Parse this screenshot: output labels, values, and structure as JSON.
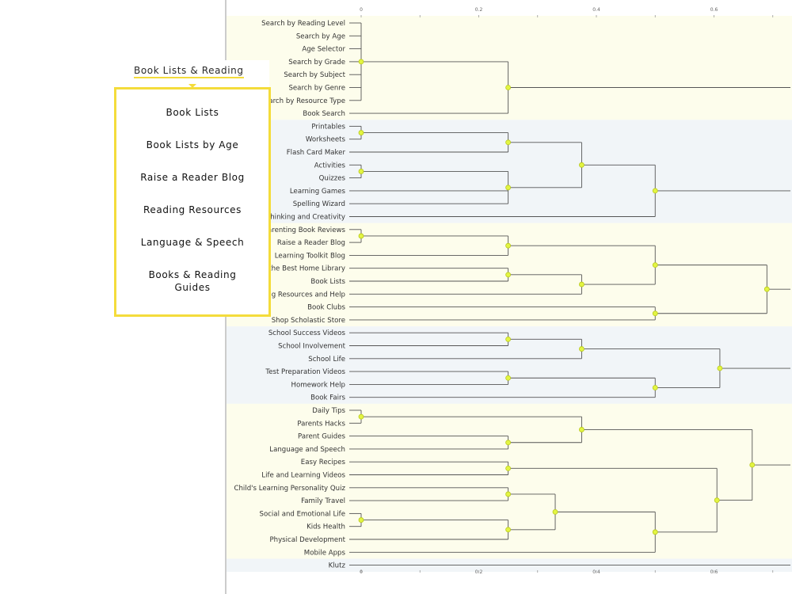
{
  "nav": {
    "tab_label": "Book Lists & Reading",
    "menu_items": [
      "Book Lists",
      "Book Lists by Age",
      "Raise a Reader Blog",
      "Reading Resources",
      "Language & Speech",
      "Books & Reading Guides"
    ]
  },
  "chart_data": {
    "type": "dendrogram",
    "orientation": "left-to-right",
    "x_ticks": [
      "0",
      "0.2",
      "0.4",
      "0.6"
    ],
    "x_tick_values": [
      0,
      0.2,
      0.4,
      0.6
    ],
    "x_range": [
      0,
      0.73
    ],
    "band_colors": [
      "#fdfdec",
      "#f1f5f8"
    ],
    "link_color": "#555555",
    "node_color": "#e3f542",
    "leaves": [
      "Search by Reading Level",
      "Search by Age",
      "Age Selector",
      "Search by Grade",
      "Search by Subject",
      "Search by Genre",
      "Search by Resource Type",
      "Book Search",
      "Printables",
      "Worksheets",
      "Flash Card Maker",
      "Activities",
      "Quizzes",
      "Learning Games",
      "Spelling Wizard",
      "Thinking and Creativity",
      "Parenting Book Reviews",
      "Raise a Reader Blog",
      "Learning Toolkit Blog",
      "Build the Best Home Library",
      "Book Lists",
      "Reading Resources and Help",
      "Book Clubs",
      "Shop Scholastic Store",
      "School Success Videos",
      "School Involvement",
      "School Life",
      "Test Preparation Videos",
      "Homework Help",
      "Book Fairs",
      "Daily Tips",
      "Parents Hacks",
      "Parent Guides",
      "Language and Speech",
      "Easy Recipes",
      "Life and Learning Videos",
      "Child's Learning Personality Quiz",
      "Family Travel",
      "Social and Emotional Life",
      "Kids Health",
      "Physical Development",
      "Mobile Apps",
      "Klutz"
    ],
    "clusters": [
      {
        "band": 0,
        "leaves": [
          0,
          7
        ]
      },
      {
        "band": 1,
        "leaves": [
          8,
          15
        ]
      },
      {
        "band": 0,
        "leaves": [
          16,
          23
        ]
      },
      {
        "band": 1,
        "leaves": [
          24,
          29
        ]
      },
      {
        "band": 0,
        "leaves": [
          30,
          41
        ]
      },
      {
        "band": 1,
        "leaves": [
          42,
          42
        ]
      }
    ],
    "merges": [
      {
        "children": [
          0,
          1,
          2,
          3,
          4,
          5,
          6
        ],
        "height": 0
      },
      {
        "children": [
          "m0",
          7
        ],
        "height": 0.25
      },
      {
        "children": [
          "m1"
        ],
        "height": 0.73
      },
      {
        "children": [
          8,
          9
        ],
        "height": 0
      },
      {
        "children": [
          "m3",
          10
        ],
        "height": 0.25
      },
      {
        "children": [
          11,
          12
        ],
        "height": 0
      },
      {
        "children": [
          "m5",
          13,
          14
        ],
        "height": 0.25
      },
      {
        "children": [
          "m4",
          "m6"
        ],
        "height": 0.375
      },
      {
        "children": [
          "m7",
          15
        ],
        "height": 0.5
      },
      {
        "children": [
          "m8"
        ],
        "height": 0.73
      },
      {
        "children": [
          16,
          17
        ],
        "height": 0
      },
      {
        "children": [
          "m10",
          18
        ],
        "height": 0.25
      },
      {
        "children": [
          19,
          20
        ],
        "height": 0.25
      },
      {
        "children": [
          "m12",
          21
        ],
        "height": 0.375
      },
      {
        "children": [
          "m11",
          "m13"
        ],
        "height": 0.5
      },
      {
        "children": [
          22,
          23
        ],
        "height": 0.5
      },
      {
        "children": [
          "m14",
          "m15"
        ],
        "height": 0.69
      },
      {
        "children": [
          "m16"
        ],
        "height": 0.73
      },
      {
        "children": [
          24,
          25
        ],
        "height": 0.25
      },
      {
        "children": [
          "m18",
          26
        ],
        "height": 0.375
      },
      {
        "children": [
          27,
          28
        ],
        "height": 0.25
      },
      {
        "children": [
          "m20",
          29
        ],
        "height": 0.5
      },
      {
        "children": [
          "m19",
          "m21"
        ],
        "height": 0.61
      },
      {
        "children": [
          "m22"
        ],
        "height": 0.73
      },
      {
        "children": [
          30,
          31
        ],
        "height": 0
      },
      {
        "children": [
          32,
          33
        ],
        "height": 0.25
      },
      {
        "children": [
          "m24",
          "m25"
        ],
        "height": 0.375
      },
      {
        "children": [
          34,
          35
        ],
        "height": 0.25
      },
      {
        "children": [
          36,
          37
        ],
        "height": 0.25
      },
      {
        "children": [
          38,
          39
        ],
        "height": 0
      },
      {
        "children": [
          "m29",
          40
        ],
        "height": 0.25
      },
      {
        "children": [
          "m28",
          "m30"
        ],
        "height": 0.33
      },
      {
        "children": [
          "m31",
          41
        ],
        "height": 0.5
      },
      {
        "children": [
          "m27",
          "m32"
        ],
        "height": 0.605
      },
      {
        "children": [
          "m26",
          "m33"
        ],
        "height": 0.665
      },
      {
        "children": [
          "m34"
        ],
        "height": 0.73
      },
      {
        "children": [
          42
        ],
        "height": 0.73
      }
    ],
    "dot_merges": [
      0,
      1,
      3,
      4,
      5,
      6,
      7,
      8,
      10,
      11,
      12,
      13,
      14,
      15,
      16,
      18,
      19,
      20,
      21,
      22,
      24,
      25,
      26,
      27,
      28,
      29,
      30,
      31,
      32,
      33,
      34
    ]
  }
}
